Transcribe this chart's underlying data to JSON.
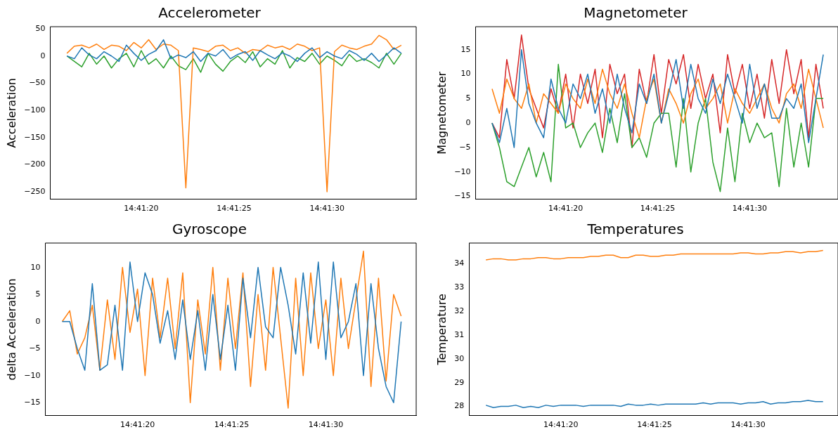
{
  "chart_data": [
    {
      "type": "line",
      "title": "Accelerometer",
      "ylabel": "Acceleration",
      "grid": false,
      "legend": false,
      "marker": "none",
      "x": [
        14.687778,
        14.687889,
        14.688,
        14.688111,
        14.688222,
        14.688333,
        14.688444,
        14.688556,
        14.688667,
        14.688778,
        14.688889,
        14.689,
        14.689111,
        14.689222,
        14.689333,
        14.689444,
        14.689556,
        14.689667,
        14.689778,
        14.689889,
        14.69,
        14.690111,
        14.690222,
        14.690333,
        14.690444,
        14.690556,
        14.690667,
        14.690778,
        14.690889,
        14.691,
        14.691111,
        14.691222,
        14.691333,
        14.691444,
        14.691556,
        14.691667,
        14.691778,
        14.691889,
        14.692,
        14.692111,
        14.692222,
        14.692333,
        14.692444,
        14.692556,
        14.692667,
        14.692778
      ],
      "xlim": [
        14.687528,
        14.693
      ],
      "xticks": [
        {
          "value": 14.688889,
          "label": "14:41:20"
        },
        {
          "value": 14.690278,
          "label": "14:41:25"
        },
        {
          "value": 14.691667,
          "label": "14:41:30"
        }
      ],
      "ylim": [
        -264,
        54
      ],
      "yticks": [
        -250,
        -200,
        -150,
        -100,
        -50,
        0,
        50
      ],
      "series": [
        {
          "color": "#1f77b4",
          "values": [
            0,
            -5,
            15,
            2,
            -5,
            8,
            0,
            -10,
            20,
            5,
            -8,
            3,
            10,
            30,
            -5,
            2,
            -3,
            8,
            -10,
            5,
            0,
            12,
            -5,
            3,
            8,
            -8,
            10,
            2,
            -5,
            6,
            0,
            -10,
            5,
            15,
            -3,
            8,
            0,
            -5,
            10,
            3,
            -8,
            5,
            -10,
            2,
            15,
            5
          ]
        },
        {
          "color": "#ff7f0e",
          "values": [
            5,
            18,
            20,
            15,
            22,
            12,
            20,
            18,
            10,
            25,
            15,
            30,
            12,
            22,
            20,
            10,
            -243,
            15,
            12,
            8,
            18,
            20,
            10,
            15,
            5,
            12,
            10,
            20,
            15,
            18,
            12,
            22,
            18,
            10,
            15,
            -250,
            8,
            20,
            15,
            12,
            18,
            22,
            38,
            30,
            12,
            20
          ]
        },
        {
          "color": "#2ca02c",
          "values": [
            0,
            -10,
            -20,
            5,
            -15,
            0,
            -22,
            -5,
            5,
            -20,
            10,
            -15,
            -5,
            -22,
            0,
            -18,
            -25,
            -5,
            -30,
            5,
            -15,
            -28,
            -10,
            0,
            -12,
            8,
            -20,
            -5,
            -15,
            10,
            -22,
            -3,
            -10,
            5,
            -15,
            0,
            -8,
            -18,
            3,
            -10,
            -5,
            -12,
            -22,
            5,
            -15,
            5
          ]
        }
      ]
    },
    {
      "type": "line",
      "title": "Magnetometer",
      "ylabel": "Magnetometer",
      "grid": false,
      "legend": false,
      "marker": "none",
      "x": [
        14.687778,
        14.687889,
        14.688,
        14.688111,
        14.688222,
        14.688333,
        14.688444,
        14.688556,
        14.688667,
        14.688778,
        14.688889,
        14.689,
        14.689111,
        14.689222,
        14.689333,
        14.689444,
        14.689556,
        14.689667,
        14.689778,
        14.689889,
        14.69,
        14.690111,
        14.690222,
        14.690333,
        14.690444,
        14.690556,
        14.690667,
        14.690778,
        14.690889,
        14.691,
        14.691111,
        14.691222,
        14.691333,
        14.691444,
        14.691556,
        14.691667,
        14.691778,
        14.691889,
        14.692,
        14.692111,
        14.692222,
        14.692333,
        14.692444,
        14.692556,
        14.692667,
        14.692778
      ],
      "xlim": [
        14.687528,
        14.693
      ],
      "xticks": [
        {
          "value": 14.688889,
          "label": "14:41:20"
        },
        {
          "value": 14.690278,
          "label": "14:41:25"
        },
        {
          "value": 14.691667,
          "label": "14:41:30"
        }
      ],
      "ylim": [
        -15.6,
        19.7
      ],
      "yticks": [
        -15,
        -10,
        -5,
        0,
        5,
        10,
        15
      ],
      "series": [
        {
          "color": "#1f77b4",
          "values": [
            0,
            -4,
            3,
            -5,
            15,
            4,
            0,
            -3,
            9,
            3,
            0,
            8,
            5,
            10,
            2,
            7,
            0,
            10,
            3,
            -2,
            8,
            4,
            10,
            0,
            6,
            13,
            3,
            12,
            5,
            2,
            9,
            4,
            10,
            5,
            0,
            12,
            3,
            8,
            1,
            1,
            5,
            3,
            8,
            -4,
            5,
            14
          ]
        },
        {
          "color": "#ff7f0e",
          "values": [
            7,
            2,
            9,
            5,
            3,
            8,
            0,
            6,
            4,
            2,
            8,
            5,
            3,
            9,
            4,
            11,
            6,
            3,
            8,
            2,
            -3,
            5,
            9,
            0,
            7,
            4,
            0,
            6,
            9,
            3,
            5,
            8,
            0,
            7,
            4,
            2,
            5,
            8,
            3,
            0,
            6,
            8,
            3,
            11,
            5,
            -1
          ]
        },
        {
          "color": "#2ca02c",
          "values": [
            0,
            -5,
            -12,
            -13,
            -9,
            -5,
            -11,
            -6,
            -12,
            12,
            -1,
            0,
            -5,
            -2,
            0,
            -6,
            3,
            -4,
            6,
            -5,
            -3,
            -7,
            0,
            2,
            2,
            -9,
            5,
            -10,
            0,
            5,
            -8,
            -14,
            -1,
            -12,
            2,
            -4,
            0,
            -3,
            -2,
            -13,
            3,
            -9,
            0,
            -9,
            5,
            5
          ]
        },
        {
          "color": "#d62728",
          "values": [
            0,
            -3,
            13,
            5,
            18,
            7,
            3,
            -1,
            7,
            2,
            10,
            -1,
            10,
            4,
            11,
            -3,
            12,
            6,
            10,
            -5,
            11,
            4,
            14,
            2,
            13,
            8,
            14,
            3,
            12,
            5,
            10,
            -2,
            14,
            6,
            12,
            3,
            10,
            1,
            13,
            4,
            15,
            6,
            13,
            -3,
            12,
            3
          ]
        }
      ]
    },
    {
      "type": "line",
      "title": "Gyroscope",
      "ylabel": "delta Acceleration",
      "grid": false,
      "legend": false,
      "marker": "none",
      "x": [
        14.687778,
        14.687889,
        14.688,
        14.688111,
        14.688222,
        14.688333,
        14.688444,
        14.688556,
        14.688667,
        14.688778,
        14.688889,
        14.689,
        14.689111,
        14.689222,
        14.689333,
        14.689444,
        14.689556,
        14.689667,
        14.689778,
        14.689889,
        14.69,
        14.690111,
        14.690222,
        14.690333,
        14.690444,
        14.690556,
        14.690667,
        14.690778,
        14.690889,
        14.691,
        14.691111,
        14.691222,
        14.691333,
        14.691444,
        14.691556,
        14.691667,
        14.691778,
        14.691889,
        14.692,
        14.692111,
        14.692222,
        14.692333,
        14.692444,
        14.692556,
        14.692667,
        14.692778
      ],
      "xlim": [
        14.687528,
        14.693
      ],
      "xticks": [
        {
          "value": 14.688889,
          "label": "14:41:20"
        },
        {
          "value": 14.690278,
          "label": "14:41:25"
        },
        {
          "value": 14.691667,
          "label": "14:41:30"
        }
      ],
      "ylim": [
        -17.4,
        14.5
      ],
      "yticks": [
        -15,
        -10,
        -5,
        0,
        5,
        10
      ],
      "series": [
        {
          "color": "#1f77b4",
          "values": [
            0,
            0,
            -5,
            -9,
            7,
            -9,
            -8,
            3,
            -9,
            11,
            0,
            9,
            5,
            -4,
            2,
            -7,
            4,
            -7,
            2,
            -9,
            5,
            -7,
            3,
            -9,
            8,
            -3,
            10,
            -1,
            -3,
            10,
            3,
            -6,
            9,
            -4,
            11,
            -7,
            11,
            -3,
            0,
            7,
            -10,
            7,
            -5,
            -12,
            -15,
            0
          ]
        },
        {
          "color": "#ff7f0e",
          "values": [
            0,
            2,
            -6,
            -3,
            3,
            -9,
            4,
            -7,
            10,
            -2,
            6,
            -10,
            8,
            -3,
            8,
            -5,
            9,
            -15,
            4,
            -6,
            10,
            -9,
            8,
            -5,
            9,
            -12,
            5,
            -9,
            10,
            -3,
            -16,
            8,
            -10,
            9,
            -5,
            4,
            -10,
            8,
            -5,
            4,
            13,
            -12,
            8,
            -11,
            5,
            1
          ]
        }
      ]
    },
    {
      "type": "line",
      "title": "Temperatures",
      "ylabel": "Temperature",
      "grid": false,
      "legend": false,
      "marker": "none",
      "x": [
        14.687778,
        14.687889,
        14.688,
        14.688111,
        14.688222,
        14.688333,
        14.688444,
        14.688556,
        14.688667,
        14.688778,
        14.688889,
        14.689,
        14.689111,
        14.689222,
        14.689333,
        14.689444,
        14.689556,
        14.689667,
        14.689778,
        14.689889,
        14.69,
        14.690111,
        14.690222,
        14.690333,
        14.690444,
        14.690556,
        14.690667,
        14.690778,
        14.690889,
        14.691,
        14.691111,
        14.691222,
        14.691333,
        14.691444,
        14.691556,
        14.691667,
        14.691778,
        14.691889,
        14.692,
        14.692111,
        14.692222,
        14.692333,
        14.692444,
        14.692556,
        14.692667,
        14.692778
      ],
      "xlim": [
        14.687528,
        14.693
      ],
      "xticks": [
        {
          "value": 14.688889,
          "label": "14:41:20"
        },
        {
          "value": 14.690278,
          "label": "14:41:25"
        },
        {
          "value": 14.691667,
          "label": "14:41:30"
        }
      ],
      "ylim": [
        27.61,
        34.86
      ],
      "yticks": [
        28,
        29,
        30,
        31,
        32,
        33,
        34
      ],
      "series": [
        {
          "color": "#1f77b4",
          "values": [
            28.05,
            27.95,
            28,
            28,
            28.05,
            27.95,
            28,
            27.95,
            28.05,
            28,
            28.05,
            28.05,
            28.05,
            28,
            28.05,
            28.05,
            28.05,
            28.05,
            28,
            28.1,
            28.05,
            28.05,
            28.1,
            28.05,
            28.1,
            28.1,
            28.1,
            28.1,
            28.1,
            28.15,
            28.1,
            28.15,
            28.15,
            28.15,
            28.1,
            28.15,
            28.15,
            28.2,
            28.1,
            28.15,
            28.15,
            28.2,
            28.2,
            28.25,
            28.2,
            28.2
          ]
        },
        {
          "color": "#ff7f0e",
          "values": [
            34.15,
            34.2,
            34.2,
            34.15,
            34.15,
            34.2,
            34.2,
            34.25,
            34.25,
            34.2,
            34.2,
            34.25,
            34.25,
            34.25,
            34.3,
            34.3,
            34.35,
            34.35,
            34.25,
            34.25,
            34.35,
            34.35,
            34.3,
            34.3,
            34.35,
            34.35,
            34.4,
            34.4,
            34.4,
            34.4,
            34.4,
            34.4,
            34.4,
            34.4,
            34.45,
            34.45,
            34.4,
            34.4,
            34.45,
            34.45,
            34.5,
            34.5,
            34.45,
            34.5,
            34.5,
            34.55
          ]
        }
      ]
    }
  ]
}
